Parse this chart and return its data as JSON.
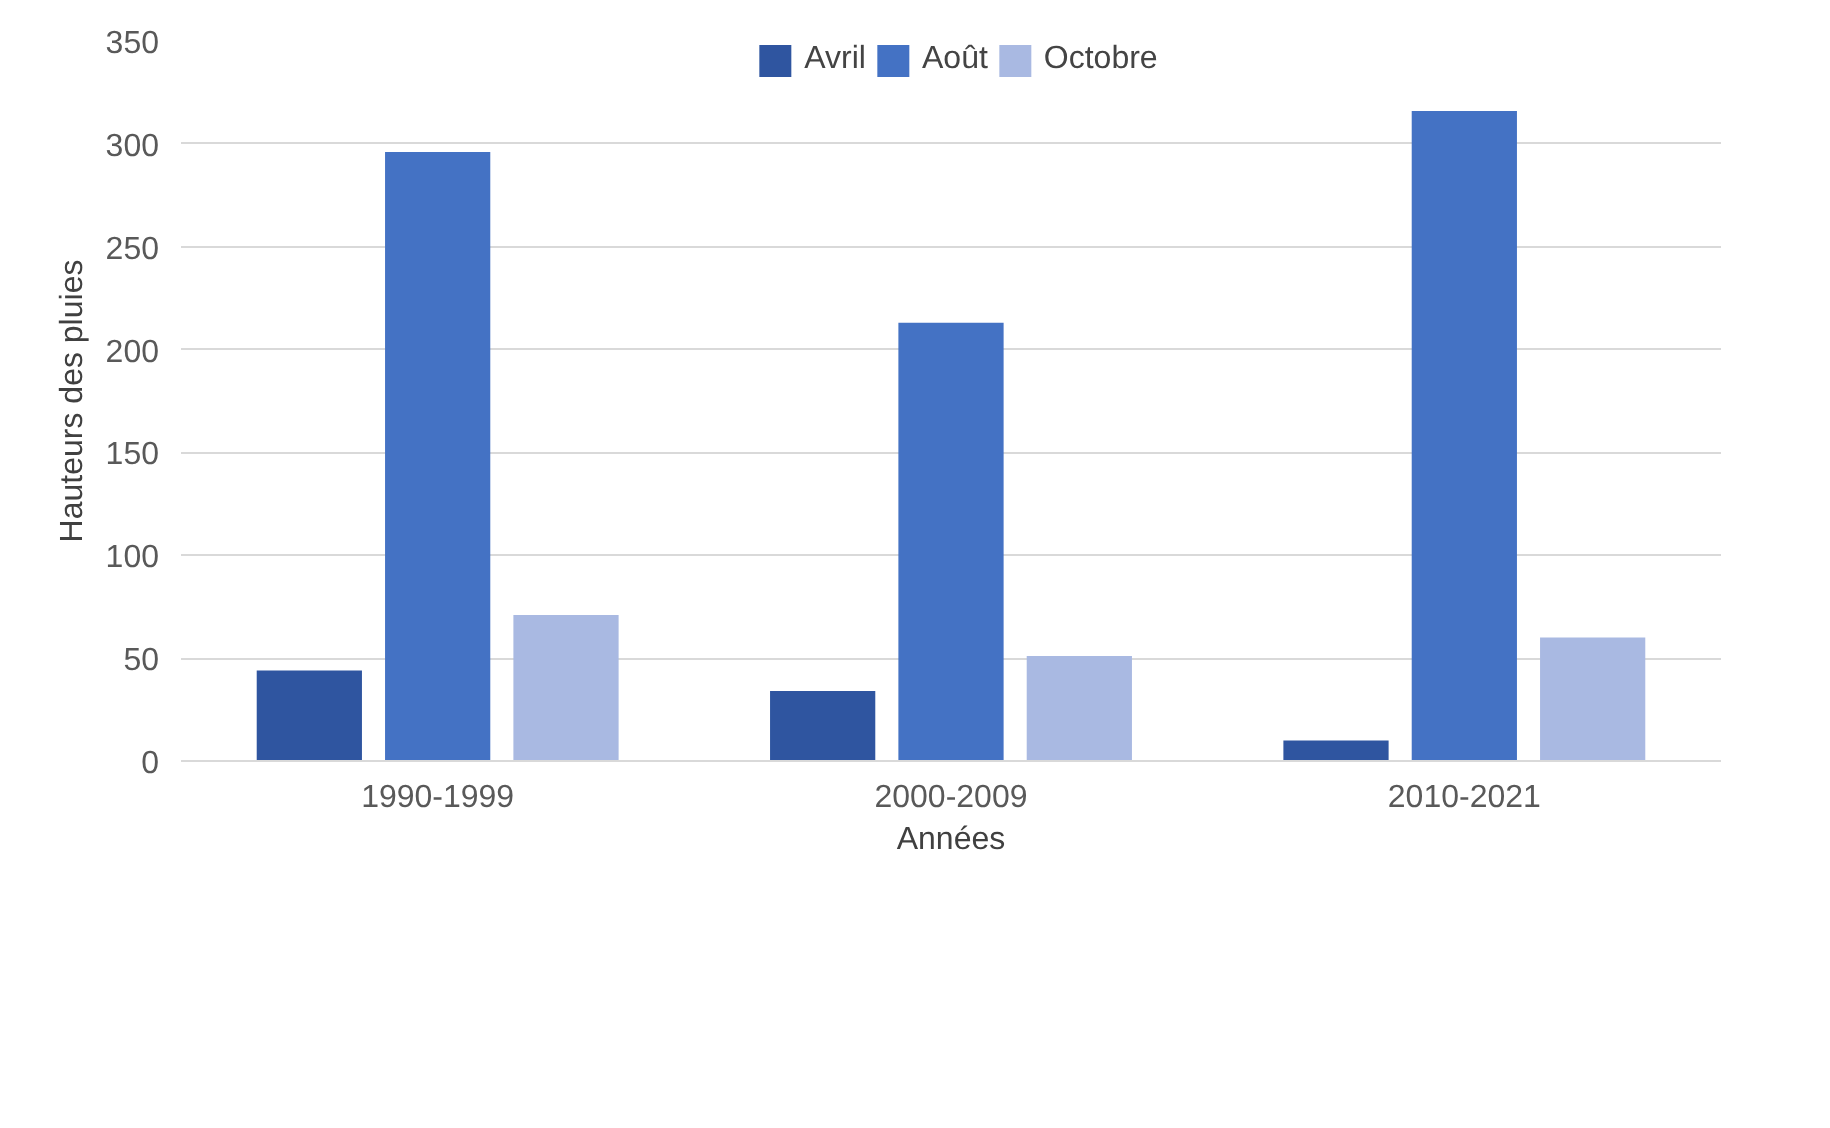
{
  "chart_data": {
    "type": "bar",
    "xlabel": "Années",
    "ylabel": "Hauteurs des pluies",
    "categories": [
      "1990-1999",
      "2000-2009",
      "2010-2021"
    ],
    "series": [
      {
        "name": "Avril",
        "color": "#2f55a0",
        "values": [
          44,
          34,
          10
        ]
      },
      {
        "name": "Août",
        "color": "#4472c4",
        "values": [
          296,
          213,
          316
        ]
      },
      {
        "name": "Octobre",
        "color": "#a9b9e2",
        "values": [
          71,
          51,
          60
        ]
      }
    ],
    "ylim": [
      0,
      350
    ],
    "yticks": [
      0,
      50,
      100,
      150,
      200,
      250,
      300,
      350
    ],
    "grid": "y",
    "legend": "top"
  }
}
